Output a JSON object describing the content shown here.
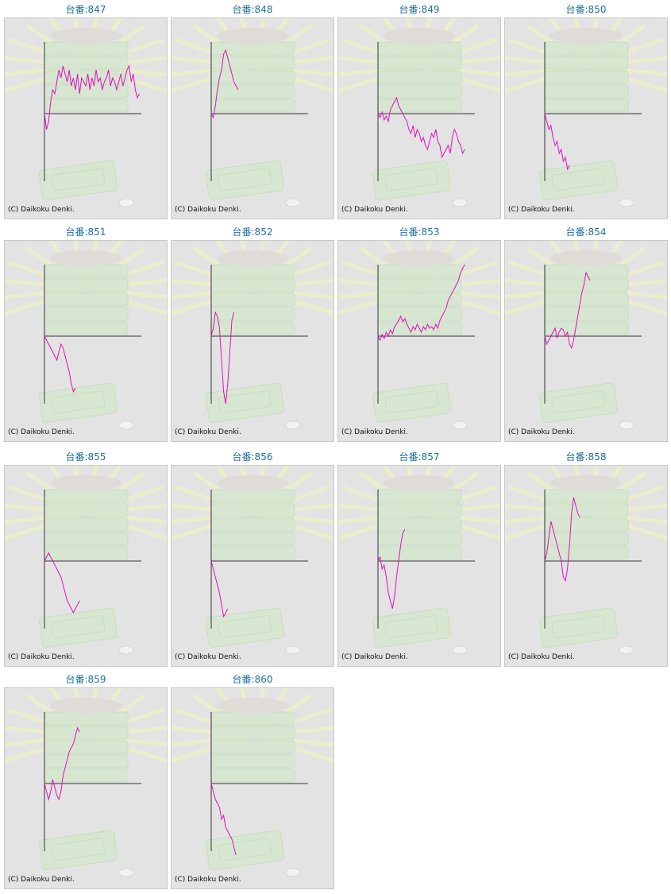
{
  "label_prefix": "台番:",
  "copyright": "(C) Daikoku Denki.",
  "colors": {
    "title": "#1f6f9f",
    "line": "#e010c0",
    "axis": "#333333",
    "panel": "#e3e3e3",
    "border": "#c8c8c8"
  },
  "machines": [
    {
      "number": "847",
      "chart_data": {
        "type": "line",
        "values": [
          0,
          -20,
          -10,
          15,
          30,
          25,
          40,
          55,
          45,
          60,
          50,
          40,
          55,
          35,
          45,
          30,
          50,
          25,
          45,
          40,
          35,
          50,
          30,
          45,
          35,
          55,
          40,
          45,
          30,
          40,
          45,
          55,
          35,
          45,
          40,
          30,
          40,
          50,
          35,
          45,
          55,
          60,
          40,
          50,
          30,
          20,
          25
        ]
      }
    },
    {
      "number": "848",
      "chart_data": {
        "type": "line",
        "values": [
          0,
          -5,
          10,
          30,
          45,
          55,
          75,
          80,
          70,
          60,
          50,
          40,
          35,
          30
        ]
      }
    },
    {
      "number": "849",
      "chart_data": {
        "type": "line",
        "values": [
          0,
          -5,
          2,
          -8,
          -3,
          -10,
          5,
          10,
          15,
          20,
          10,
          5,
          0,
          -5,
          -10,
          -20,
          -25,
          -15,
          -30,
          -20,
          -25,
          -35,
          -30,
          -40,
          -45,
          -35,
          -25,
          -30,
          -20,
          -35,
          -40,
          -55,
          -50,
          -45,
          -40,
          -50,
          -30,
          -20,
          -25,
          -35,
          -40,
          -50,
          -45
        ]
      }
    },
    {
      "number": "850",
      "chart_data": {
        "type": "line",
        "values": [
          0,
          -10,
          -20,
          -15,
          -30,
          -40,
          -35,
          -50,
          -45,
          -60,
          -55,
          -70,
          -65
        ]
      }
    },
    {
      "number": "851",
      "chart_data": {
        "type": "line",
        "values": [
          0,
          -5,
          -10,
          -15,
          -20,
          -25,
          -30,
          -20,
          -10,
          -15,
          -25,
          -35,
          -45,
          -60,
          -70,
          -65
        ]
      }
    },
    {
      "number": "852",
      "chart_data": {
        "type": "line",
        "values": [
          0,
          10,
          30,
          25,
          10,
          -30,
          -70,
          -85,
          -60,
          -20,
          20,
          30
        ]
      }
    },
    {
      "number": "853",
      "chart_data": {
        "type": "line",
        "values": [
          0,
          -5,
          2,
          -3,
          5,
          0,
          8,
          3,
          12,
          15,
          20,
          25,
          18,
          22,
          15,
          10,
          5,
          12,
          8,
          15,
          10,
          5,
          12,
          8,
          15,
          10,
          12,
          8,
          15,
          10,
          20,
          25,
          30,
          35,
          45,
          50,
          55,
          60,
          65,
          70,
          80,
          85,
          90
        ]
      }
    },
    {
      "number": "854",
      "chart_data": {
        "type": "line",
        "values": [
          0,
          -10,
          -5,
          0,
          5,
          10,
          -2,
          5,
          10,
          8,
          0,
          5,
          -10,
          -15,
          -5,
          10,
          25,
          40,
          55,
          65,
          80,
          75,
          70
        ]
      }
    },
    {
      "number": "855",
      "chart_data": {
        "type": "line",
        "values": [
          0,
          5,
          10,
          5,
          0,
          -5,
          -10,
          -15,
          -20,
          -30,
          -40,
          -50,
          -55,
          -60,
          -65,
          -60,
          -55,
          -50
        ]
      }
    },
    {
      "number": "856",
      "chart_data": {
        "type": "line",
        "values": [
          0,
          -10,
          -20,
          -30,
          -40,
          -55,
          -70,
          -65,
          -60
        ]
      }
    },
    {
      "number": "857",
      "chart_data": {
        "type": "line",
        "values": [
          0,
          5,
          -10,
          -5,
          -20,
          -40,
          -50,
          -60,
          -45,
          -20,
          0,
          20,
          35,
          40
        ]
      }
    },
    {
      "number": "858",
      "chart_data": {
        "type": "line",
        "values": [
          0,
          10,
          30,
          50,
          40,
          30,
          20,
          10,
          0,
          -20,
          -25,
          -10,
          20,
          60,
          80,
          70,
          60,
          55
        ]
      }
    },
    {
      "number": "859",
      "chart_data": {
        "type": "line",
        "values": [
          0,
          -10,
          -20,
          -10,
          5,
          -5,
          -15,
          -20,
          -10,
          10,
          20,
          30,
          40,
          45,
          50,
          60,
          70,
          65
        ]
      }
    },
    {
      "number": "860",
      "chart_data": {
        "type": "line",
        "values": [
          0,
          -10,
          -20,
          -25,
          -30,
          -45,
          -40,
          -55,
          -60,
          -65,
          -70,
          -80,
          -90
        ]
      }
    }
  ]
}
